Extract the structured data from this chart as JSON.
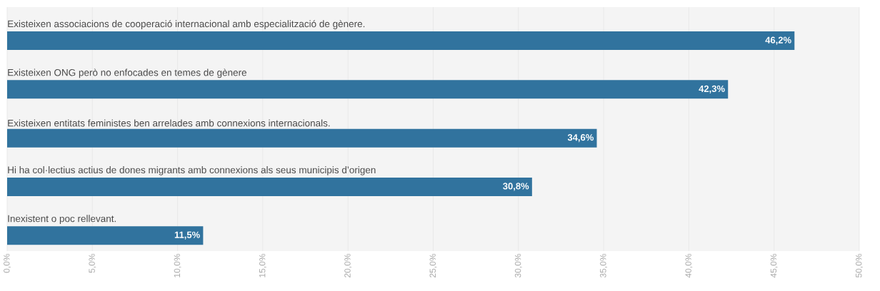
{
  "chart_data": {
    "type": "bar",
    "orientation": "horizontal",
    "categories": [
      "Existeixen associacions de cooperació internacional amb especialització de gènere.",
      "Existeixen ONG però no enfocades en temes de gènere",
      "Existeixen entitats feministes ben arrelades amb connexions internacionals.",
      "Hi ha col·lectius actius de dones migrants amb connexions als seus municipis d’origen",
      "Inexistent o poc rellevant."
    ],
    "values": [
      46.2,
      42.3,
      34.6,
      30.8,
      11.5
    ],
    "value_labels": [
      "46,2%",
      "42,3%",
      "34,6%",
      "30,8%",
      "11,5%"
    ],
    "color": "#31739e",
    "xlim": [
      0,
      50
    ],
    "xticks": [
      {
        "value": 0,
        "label": "0,0%"
      },
      {
        "value": 5,
        "label": "5,0%"
      },
      {
        "value": 10,
        "label": "10,0%"
      },
      {
        "value": 15,
        "label": "15,0%"
      },
      {
        "value": 20,
        "label": "20,0%"
      },
      {
        "value": 25,
        "label": "25,0%"
      },
      {
        "value": 30,
        "label": "30,0%"
      },
      {
        "value": 35,
        "label": "35,0%"
      },
      {
        "value": 40,
        "label": "40,0%"
      },
      {
        "value": 45,
        "label": "45,0%"
      },
      {
        "value": 50,
        "label": "50,0%"
      }
    ],
    "grid": "x"
  }
}
